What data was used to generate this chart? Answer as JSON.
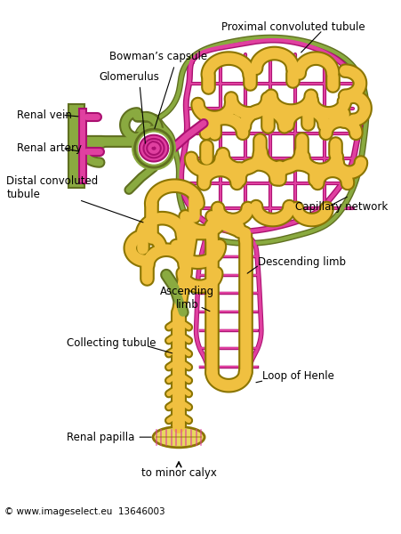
{
  "background_color": "#FFFFFF",
  "watermark": "© www.imageselect.eu  13646003",
  "labels": {
    "proximal_convoluted_tubule": "Proximal convoluted tubule",
    "bowmans_capsule": "Bowman’s capsule",
    "glomerulus": "Glomerulus",
    "renal_vein": "Renal vein",
    "renal_artery": "Renal artery",
    "distal_convoluted_tubule": "Distal convoluted\ntubule",
    "capillary_network": "Capillary network",
    "ascending_limb": "Ascending\nlimb",
    "descending_limb": "Descending limb",
    "collecting_tubule": "Collecting tubule",
    "loop_of_henle": "Loop of Henle",
    "renal_papilla": "Renal papilla",
    "to_minor_calyx": "to minor calyx"
  },
  "colors": {
    "tubule_fill": "#F0C040",
    "tubule_outline": "#8B7500",
    "capillary_pink": "#E040A0",
    "capillary_outline": "#AA1070",
    "green_fill": "#8AAA40",
    "green_outline": "#607020",
    "background": "#FFFFFF",
    "text_color": "#000000"
  },
  "font_size": 8.5,
  "watermark_font_size": 7.5
}
